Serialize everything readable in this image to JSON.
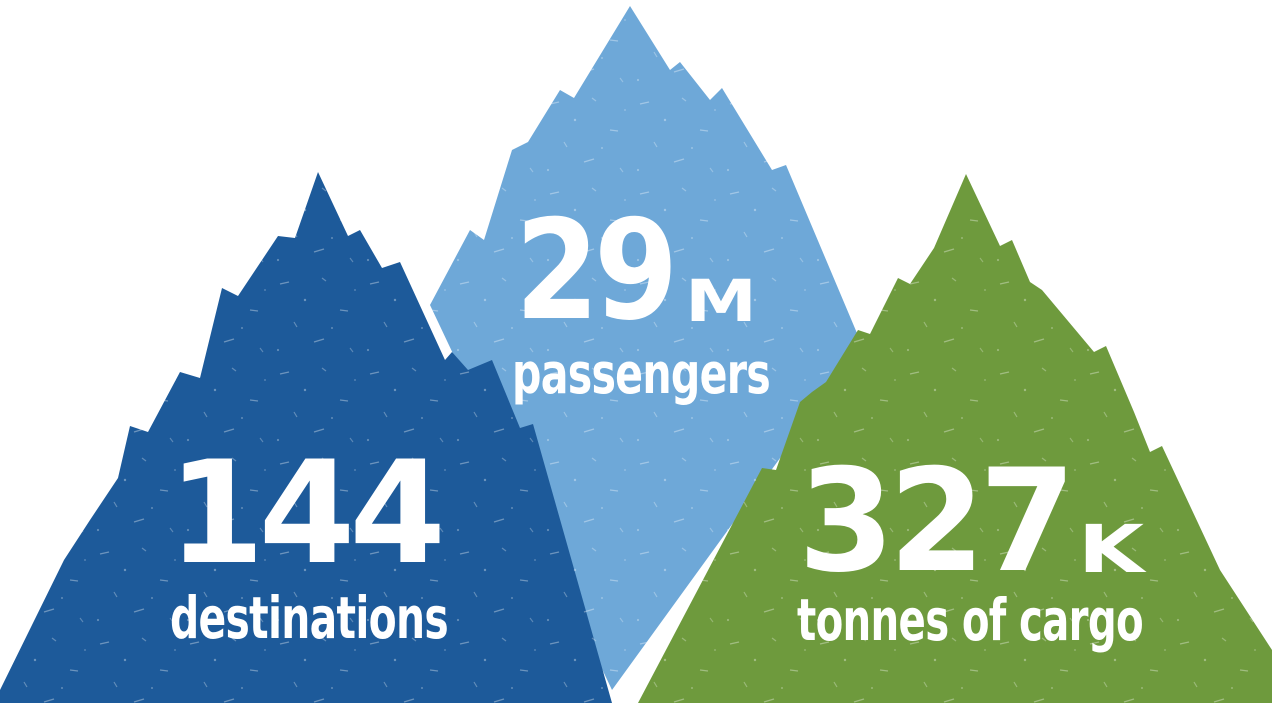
{
  "colors": {
    "background": "#ffffff",
    "navy_mountain": "#1d5a9a",
    "light_blue_mountain": "#6ea8d8",
    "green_mountain": "#6e9a3d",
    "text": "#ffffff"
  },
  "stats": {
    "passengers": {
      "number": "29",
      "unit": "M",
      "label": "passengers"
    },
    "destinations": {
      "number": "144",
      "label": "destinations"
    },
    "cargo": {
      "number": "327",
      "unit": "K",
      "label": "tonnes of cargo"
    }
  }
}
